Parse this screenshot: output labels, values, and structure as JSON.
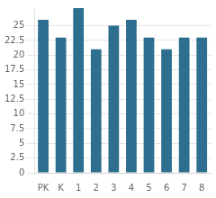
{
  "chart_data": {
    "type": "bar",
    "categories": [
      "PK",
      "K",
      "1",
      "2",
      "3",
      "4",
      "5",
      "6",
      "7",
      "8"
    ],
    "values": [
      26,
      23,
      28,
      21,
      25,
      26,
      23,
      21,
      23,
      23
    ],
    "color": "#2e6e8e",
    "ylim": [
      0,
      28
    ],
    "yticks": [
      0,
      2.5,
      5,
      7.5,
      10,
      12.5,
      15,
      17.5,
      20,
      22.5,
      25
    ],
    "grid": true
  }
}
